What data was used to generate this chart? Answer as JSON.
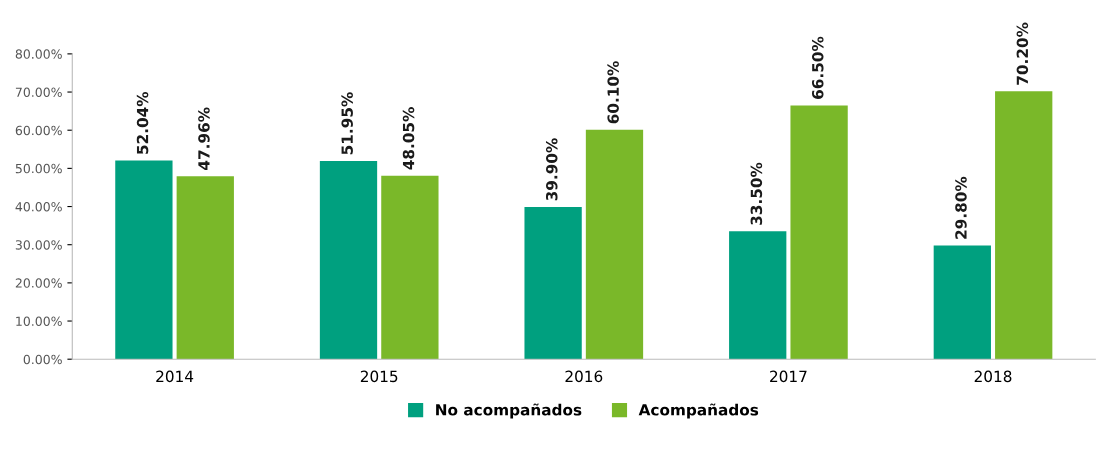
{
  "chart_data": {
    "type": "bar",
    "categories": [
      "2014",
      "2015",
      "2016",
      "2017",
      "2018"
    ],
    "series": [
      {
        "name": "No acompañados",
        "color": "#00a07f",
        "values": [
          52.04,
          51.95,
          39.9,
          33.5,
          29.8
        ],
        "value_labels": [
          "52.04%",
          "51.95%",
          "39.90%",
          "33.50%",
          "29.80%"
        ]
      },
      {
        "name": "Acompañados",
        "color": "#7ab829",
        "values": [
          47.96,
          48.05,
          60.1,
          66.5,
          70.2
        ],
        "value_labels": [
          "47.96%",
          "48.05%",
          "60.10%",
          "66.50%",
          "70.20%"
        ]
      }
    ],
    "ylim": [
      0,
      80
    ],
    "yticks": [
      {
        "value": 0,
        "label": "0.00%"
      },
      {
        "value": 10,
        "label": "10.00%"
      },
      {
        "value": 20,
        "label": "20.00%"
      },
      {
        "value": 30,
        "label": "30.00%"
      },
      {
        "value": 40,
        "label": "40.00%"
      },
      {
        "value": 50,
        "label": "50.00%"
      },
      {
        "value": 60,
        "label": "60.00%"
      },
      {
        "value": 70,
        "label": "70.00%"
      },
      {
        "value": 80,
        "label": "80.00%"
      }
    ],
    "grid": false,
    "legend": "bottom"
  }
}
